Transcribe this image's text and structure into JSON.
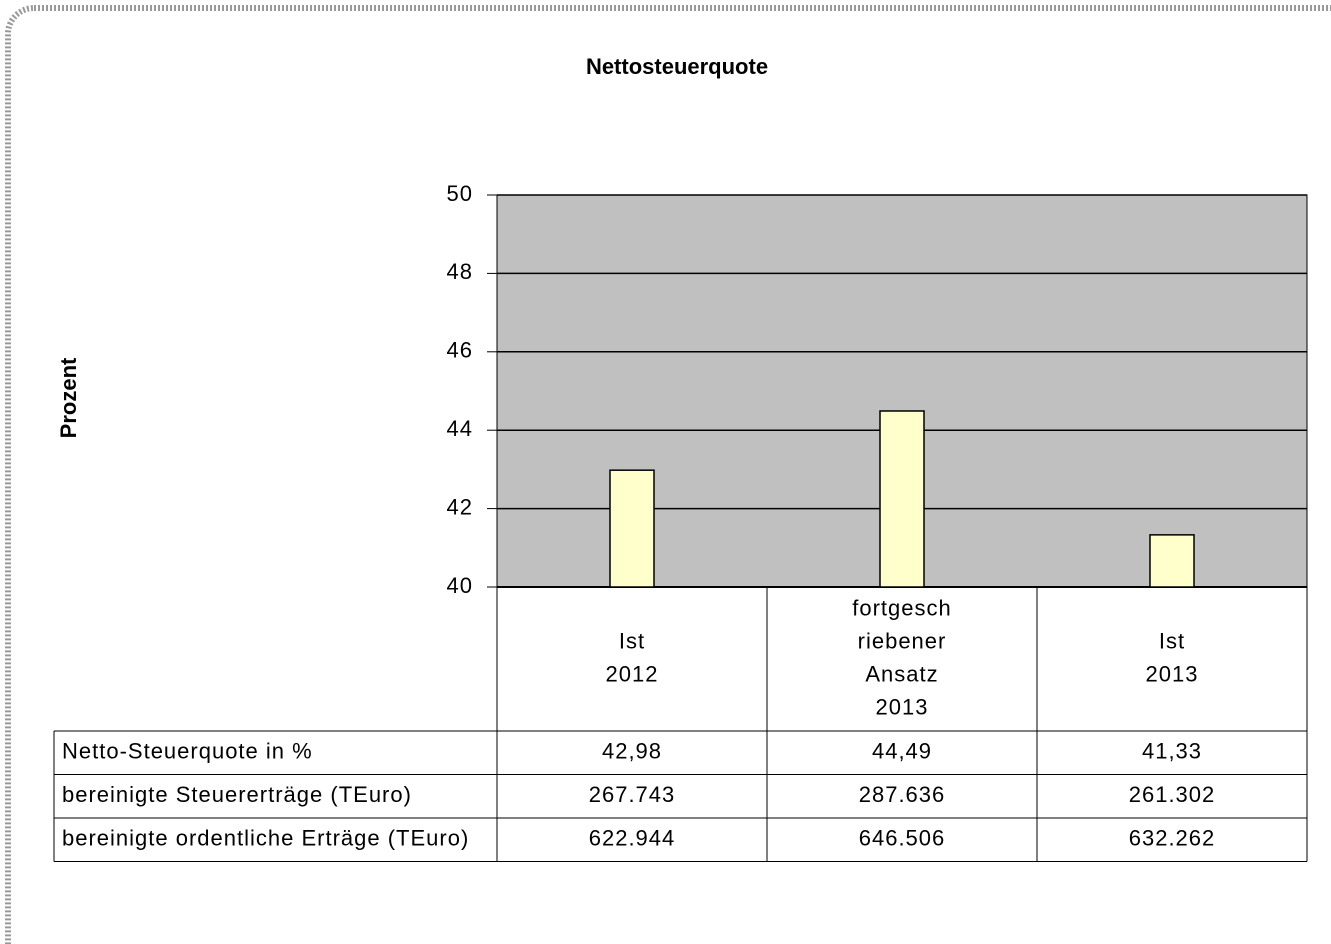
{
  "chart_data": {
    "type": "bar",
    "title": "Nettosteuerquote",
    "y_label": "Prozent",
    "categories": [
      [
        "Ist",
        "2012"
      ],
      [
        "fortgesch",
        "riebener",
        "Ansatz",
        "2013"
      ],
      [
        "Ist",
        "2013"
      ]
    ],
    "series": [
      {
        "name": "Netto-Steuerquote in %",
        "color": "#ffffcc",
        "values": [
          42.98,
          44.49,
          41.33
        ],
        "value_labels": [
          "42,98",
          "44,49",
          "41,33"
        ]
      }
    ],
    "ylim": [
      40,
      50
    ],
    "yticks": [
      40,
      42,
      44,
      46,
      48,
      50
    ],
    "grid": true,
    "plot_background": "#c0c0c0"
  },
  "data_table": {
    "rows": [
      {
        "label": "bereinigte Steuererträge (TEuro)",
        "cells": [
          "267.743",
          "287.636",
          "261.302"
        ]
      },
      {
        "label": "bereinigte ordentliche Erträge (TEuro)",
        "cells": [
          "622.944",
          "646.506",
          "632.262"
        ]
      }
    ]
  }
}
